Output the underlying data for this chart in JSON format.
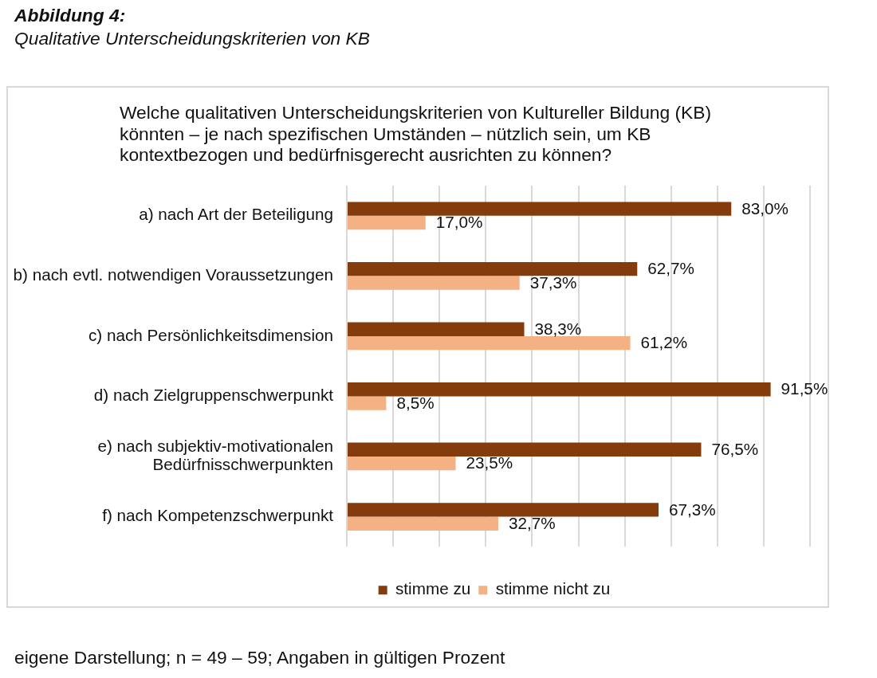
{
  "chart_data": {
    "type": "bar",
    "orientation": "horizontal",
    "title": "Welche qualitativen Unterscheidungskriterien von Kultureller Bildung (KB) könnten – je nach spezifischen Umständen – nützlich sein, um KB kontextbezogen und bedürfnisgerecht ausrichten zu können?",
    "categories": [
      "a) nach Art der Beteiligung",
      "b) nach evtl. notwendigen Voraussetzungen",
      "c) nach Persönlichkeitsdimension",
      "d) nach Zielgruppenschwerpunkt",
      "e) nach subjektiv-motivationalen Bedürfnisschwerpunkten",
      "f) nach Kompetenzschwerpunkt"
    ],
    "series": [
      {
        "name": "stimme zu",
        "color": "#843c0c",
        "values": [
          83.0,
          62.7,
          38.3,
          91.5,
          76.5,
          67.3
        ],
        "value_labels": [
          "83,0%",
          "62,7%",
          "38,3%",
          "91,5%",
          "76,5%",
          "67,3%"
        ]
      },
      {
        "name": "stimme nicht zu",
        "color": "#f4b183",
        "values": [
          17.0,
          37.3,
          61.2,
          8.5,
          23.5,
          32.7
        ],
        "value_labels": [
          "17,0%",
          "37,3%",
          "61,2%",
          "8,5%",
          "23,5%",
          "32,7%"
        ]
      }
    ],
    "xlim": [
      0,
      100
    ],
    "xticks": [
      {
        "value": 0,
        "label": null
      },
      {
        "value": 10,
        "label": null
      },
      {
        "value": 20,
        "label": null
      },
      {
        "value": 30,
        "label": null
      },
      {
        "value": 40,
        "label": null
      },
      {
        "value": 50,
        "label": null
      },
      {
        "value": 60,
        "label": null
      },
      {
        "value": 70,
        "label": null
      },
      {
        "value": 80,
        "label": null
      },
      {
        "value": 90,
        "label": null
      },
      {
        "value": 100,
        "label": null
      }
    ],
    "grid": "x",
    "legend": "bottom",
    "tick_labels": "y",
    "annotations": [
      "Abbildung 4:",
      "Qualitative Unterscheidungskriterien von KB",
      "eigene Darstellung; n = 49 – 59; Angaben in gültigen Prozent"
    ]
  }
}
